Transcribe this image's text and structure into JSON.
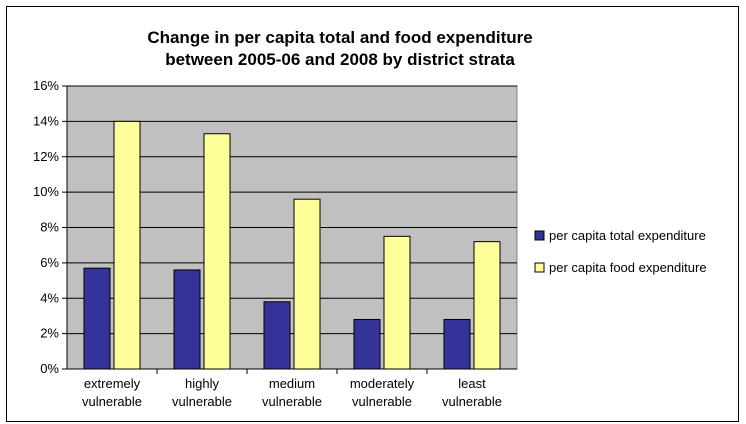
{
  "chart_data": {
    "type": "bar",
    "title_lines": [
      "Change in per capita total and food expenditure",
      "between 2005-06 and 2008 by district strata"
    ],
    "categories": [
      [
        "extremely",
        "vulnerable"
      ],
      [
        "highly",
        "vulnerable"
      ],
      [
        "medium",
        "vulnerable"
      ],
      [
        "moderately",
        "vulnerable"
      ],
      [
        "least",
        "vulnerable"
      ]
    ],
    "series": [
      {
        "name": "per capita total expenditure",
        "values": [
          5.7,
          5.6,
          3.8,
          2.8,
          2.8
        ],
        "color": "#333399"
      },
      {
        "name": "per capita food expenditure",
        "values": [
          14.0,
          13.3,
          9.6,
          7.5,
          7.2
        ],
        "color": "#FFFF99"
      }
    ],
    "ylim": [
      0,
      16
    ],
    "yticks": [
      "0%",
      "2%",
      "4%",
      "6%",
      "8%",
      "10%",
      "12%",
      "14%",
      "16%"
    ],
    "grid": true,
    "legend_position": "right",
    "plot_background": "#C0C0C0"
  }
}
